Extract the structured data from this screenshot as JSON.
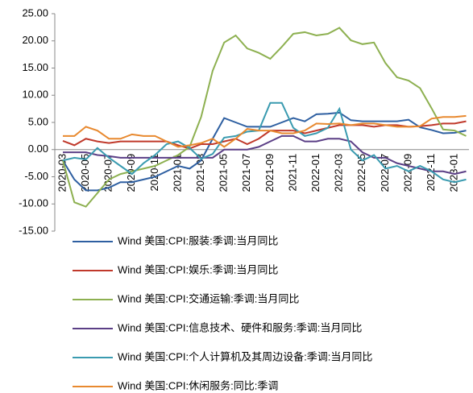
{
  "chart_data": {
    "type": "line",
    "categories": [
      "2020-03",
      null,
      "2020-05",
      null,
      "2020-07",
      null,
      "2020-09",
      null,
      "2020-11",
      null,
      "2021-01",
      null,
      "2021-03",
      null,
      "2021-05",
      null,
      "2021-07",
      null,
      "2021-09",
      null,
      "2021-11",
      null,
      "2022-01",
      null,
      "2022-03",
      null,
      "2022-05",
      null,
      "2022-07",
      null,
      "2022-09",
      null,
      "2022-11",
      null,
      "2023-01",
      null
    ],
    "series": [
      {
        "name": "Wind 美国:CPI:服装:季调:当月同比",
        "color": "#2e5fa1",
        "values": [
          -2,
          -5.5,
          -7.5,
          -7.5,
          -7,
          -6,
          -6,
          -5.5,
          -5,
          -4,
          -3,
          -3.5,
          -2,
          2,
          5.8,
          5,
          4.2,
          4.2,
          4.2,
          5,
          5.8,
          5.2,
          6.5,
          6.6,
          6.8,
          5.4,
          5.2,
          5.2,
          5.2,
          5.2,
          5.5,
          4.1,
          3.6,
          3,
          3.1,
          3.5
        ]
      },
      {
        "name": "Wind 美国:CPI:娱乐:季调:当月同比",
        "color": "#c0392b",
        "values": [
          1.6,
          0.8,
          2,
          1.5,
          1.2,
          1.5,
          1.5,
          1.5,
          1.5,
          1.5,
          0.8,
          0.2,
          1,
          1,
          1.5,
          2,
          1,
          2,
          3.5,
          3.5,
          3.5,
          3,
          3.5,
          4,
          4.5,
          4.5,
          4.5,
          4.2,
          4.5,
          4.5,
          4.2,
          4.3,
          4.5,
          4.8,
          4.8,
          5.2
        ]
      },
      {
        "name": "Wind 美国:CPI:交通运输:季调:当月同比",
        "color": "#8db050",
        "values": [
          -2,
          -9.7,
          -10.5,
          -8,
          -5.5,
          -4.5,
          -4,
          -3.5,
          -3,
          -2,
          -1,
          0.5,
          6,
          14.5,
          19.7,
          21,
          18.6,
          17.8,
          16.7,
          18.9,
          21.3,
          21.6,
          21,
          21.3,
          22.4,
          20.1,
          19.4,
          19.7,
          15.9,
          13.3,
          12.7,
          11.3,
          7.6,
          3.7,
          3.5,
          2.5
        ]
      },
      {
        "name": "Wind 美国:CPI:信息技术、硬件和服务:季调:当月同比",
        "color": "#5b3f86",
        "values": [
          -0.5,
          -0.5,
          -0.5,
          -1,
          -1.2,
          -1.5,
          -1.5,
          -1.5,
          -1.5,
          -1.5,
          -1.5,
          -1.5,
          -1.5,
          -1.5,
          0,
          0,
          0,
          0.5,
          1.5,
          2.5,
          2.5,
          1.5,
          1.5,
          2,
          2,
          1.5,
          -0.5,
          -1.5,
          -1.5,
          -2.5,
          -3,
          -3.5,
          -4,
          -4,
          -4.5,
          -4
        ]
      },
      {
        "name": "Wind 美国:CPI:个人计算机及其周边设备:季调:当月同比",
        "color": "#3a9bb0",
        "values": [
          -2,
          -1.5,
          -1.8,
          0.3,
          -1.5,
          -3,
          -4.5,
          -2.5,
          -1,
          1,
          1.5,
          0.3,
          -1.7,
          -0.8,
          2.2,
          2.5,
          3.3,
          3.5,
          8.6,
          8.6,
          4,
          2.5,
          3,
          4,
          7.5,
          0,
          -2,
          -1,
          -3.5,
          -3,
          -4,
          -3,
          -4,
          -5.5,
          -6,
          -5.5
        ]
      },
      {
        "name": "Wind 美国:CPI:休闲服务:同比:季调",
        "color": "#e8892f",
        "values": [
          2.5,
          2.5,
          4.2,
          3.5,
          2,
          2,
          2.8,
          2.5,
          2.5,
          1.5,
          0.5,
          0.8,
          1.2,
          2,
          0.5,
          2,
          3.8,
          3.5,
          3.5,
          3,
          3,
          3.5,
          4.8,
          4.7,
          4.8,
          4.5,
          4.8,
          4.8,
          4.5,
          4.2,
          4.2,
          4.3,
          5.7,
          6,
          6,
          6.2
        ]
      }
    ],
    "ylim": [
      -15,
      25
    ],
    "yticks": [
      {
        "value": -15,
        "label": "-15.00"
      },
      {
        "value": -10,
        "label": "-10.00"
      },
      {
        "value": -5,
        "label": "-5.00"
      },
      {
        "value": 0,
        "label": "0.00"
      },
      {
        "value": 5,
        "label": "5.00"
      },
      {
        "value": 10,
        "label": "10.00"
      },
      {
        "value": 15,
        "label": "15.00"
      },
      {
        "value": 20,
        "label": "20.00"
      },
      {
        "value": 25,
        "label": "25.00"
      }
    ],
    "grid": false
  }
}
